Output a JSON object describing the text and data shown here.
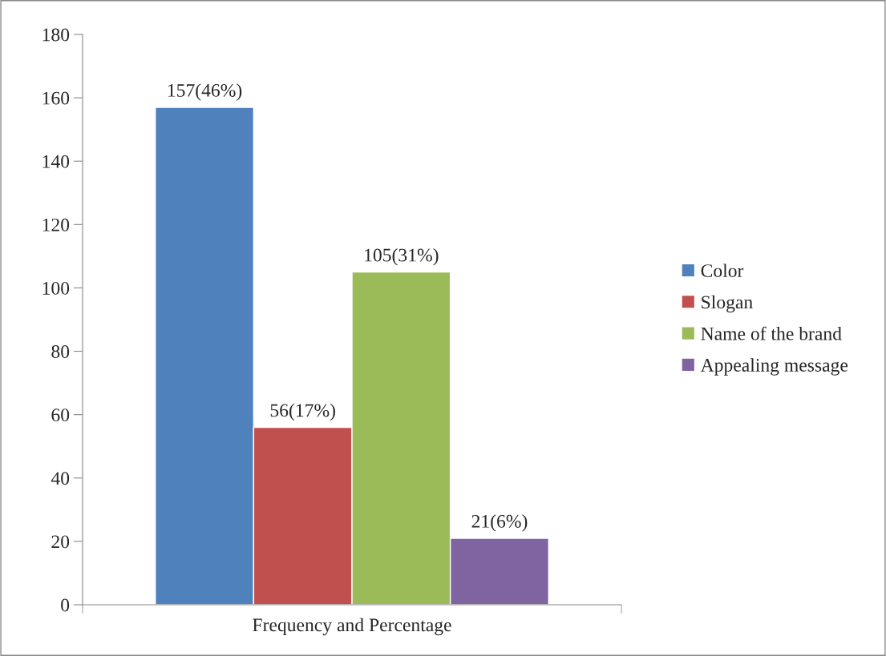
{
  "chart_data": {
    "type": "bar",
    "categories": [
      "Frequency and Percentage"
    ],
    "series": [
      {
        "name": "Color",
        "color": "#4f81bd",
        "values": [
          157
        ],
        "value_labels": [
          "157(46%)"
        ]
      },
      {
        "name": "Slogan",
        "color": "#c0504d",
        "values": [
          56
        ],
        "value_labels": [
          "56(17%)"
        ]
      },
      {
        "name": "Name of the brand",
        "color": "#9bbb59",
        "values": [
          105
        ],
        "value_labels": [
          "105(31%)"
        ]
      },
      {
        "name": "Appealing message",
        "color": "#8064a2",
        "values": [
          21
        ],
        "value_labels": [
          "21(6%)"
        ]
      }
    ],
    "ylim": [
      0,
      180
    ],
    "yticks": [
      0,
      20,
      40,
      60,
      80,
      100,
      120,
      140,
      160,
      180
    ],
    "legend": "right"
  }
}
